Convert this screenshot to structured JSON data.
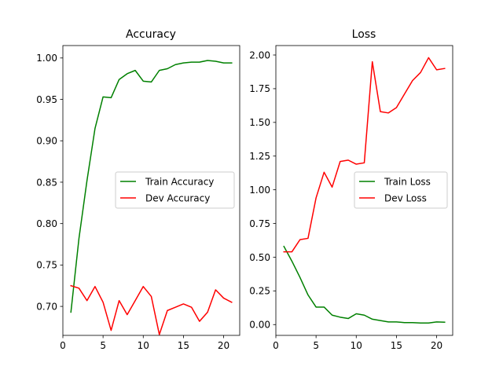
{
  "chart_data": [
    {
      "type": "line",
      "title": "Accuracy",
      "xlabel": "",
      "ylabel": "",
      "xlim": [
        0,
        22
      ],
      "ylim": [
        0.665,
        1.015
      ],
      "xticks": [
        0,
        5,
        10,
        15,
        20
      ],
      "yticks": [
        0.7,
        0.75,
        0.8,
        0.85,
        0.9,
        0.95,
        1.0
      ],
      "ytick_labels": [
        "0.70",
        "0.75",
        "0.80",
        "0.85",
        "0.90",
        "0.95",
        "1.00"
      ],
      "legend_position": "center-right",
      "grid": false,
      "x": [
        1,
        2,
        3,
        4,
        5,
        6,
        7,
        8,
        9,
        10,
        11,
        12,
        13,
        14,
        15,
        16,
        17,
        18,
        19,
        20,
        21
      ],
      "series": [
        {
          "name": "Train Accuracy",
          "color": "#008000",
          "values": [
            0.693,
            0.782,
            0.852,
            0.915,
            0.953,
            0.952,
            0.974,
            0.981,
            0.985,
            0.972,
            0.971,
            0.985,
            0.987,
            0.992,
            0.994,
            0.995,
            0.995,
            0.997,
            0.996,
            0.994,
            0.994
          ]
        },
        {
          "name": "Dev Accuracy",
          "color": "#ff0000",
          "values": [
            0.725,
            0.722,
            0.707,
            0.724,
            0.705,
            0.671,
            0.707,
            0.69,
            0.707,
            0.724,
            0.712,
            0.666,
            0.695,
            0.699,
            0.703,
            0.699,
            0.682,
            0.693,
            0.72,
            0.71,
            0.705
          ]
        }
      ]
    },
    {
      "type": "line",
      "title": "Loss",
      "xlabel": "",
      "ylabel": "",
      "xlim": [
        0,
        22
      ],
      "ylim": [
        -0.08,
        2.07
      ],
      "xticks": [
        0,
        5,
        10,
        15,
        20
      ],
      "yticks": [
        0.0,
        0.25,
        0.5,
        0.75,
        1.0,
        1.25,
        1.5,
        1.75,
        2.0
      ],
      "ytick_labels": [
        "0.00",
        "0.25",
        "0.50",
        "0.75",
        "1.00",
        "1.25",
        "1.50",
        "1.75",
        "2.00"
      ],
      "legend_position": "center-right",
      "grid": false,
      "x": [
        1,
        2,
        3,
        4,
        5,
        6,
        7,
        8,
        9,
        10,
        11,
        12,
        13,
        14,
        15,
        16,
        17,
        18,
        19,
        20,
        21
      ],
      "series": [
        {
          "name": "Train Loss",
          "color": "#008000",
          "values": [
            0.58,
            0.47,
            0.35,
            0.22,
            0.13,
            0.13,
            0.07,
            0.055,
            0.045,
            0.08,
            0.07,
            0.04,
            0.03,
            0.02,
            0.02,
            0.015,
            0.015,
            0.012,
            0.012,
            0.02,
            0.018
          ]
        },
        {
          "name": "Dev Loss",
          "color": "#ff0000",
          "values": [
            0.54,
            0.54,
            0.63,
            0.64,
            0.94,
            1.13,
            1.02,
            1.21,
            1.22,
            1.19,
            1.2,
            1.95,
            1.58,
            1.57,
            1.61,
            1.71,
            1.81,
            1.87,
            1.98,
            1.89,
            1.9
          ]
        }
      ]
    }
  ]
}
